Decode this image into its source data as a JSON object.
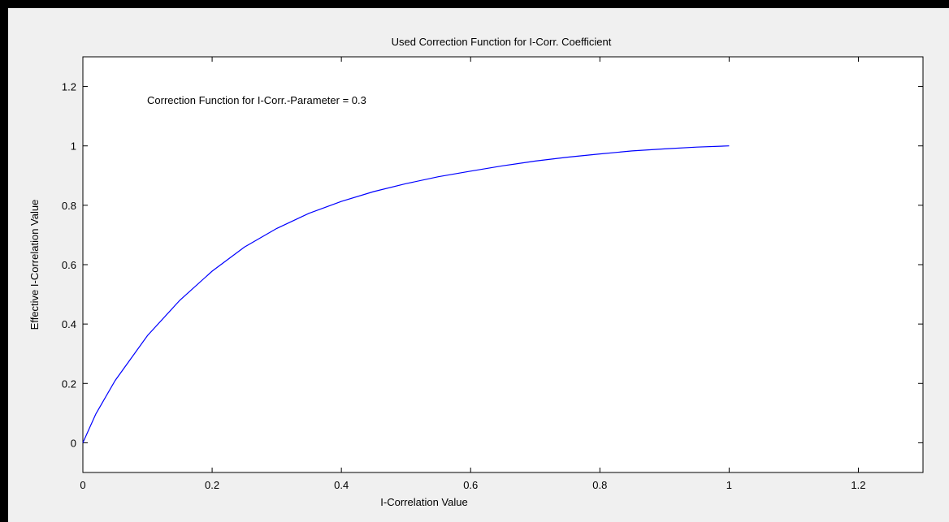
{
  "chart_data": {
    "type": "line",
    "title": "Used Correction Function for I-Corr. Coefficient",
    "xlabel": "I-Correlation Value",
    "ylabel": "Effective I-Correlation Value",
    "xlim": [
      0,
      1.3
    ],
    "ylim": [
      -0.1,
      1.3
    ],
    "xticks": [
      0,
      0.2,
      0.4,
      0.6,
      0.8,
      1,
      1.2
    ],
    "yticks": [
      0,
      0.2,
      0.4,
      0.6,
      0.8,
      1,
      1.2
    ],
    "xtick_labels": [
      "0",
      "0.2",
      "0.4",
      "0.6",
      "0.8",
      "1",
      "1.2"
    ],
    "ytick_labels": [
      "0",
      "0.2",
      "0.4",
      "0.6",
      "0.8",
      "1",
      "1.2"
    ],
    "grid": false,
    "annotation": "Correction Function for I-Corr.-Parameter = 0.3",
    "series": [
      {
        "color": "#0000ff",
        "x": [
          0,
          0.02,
          0.05,
          0.1,
          0.15,
          0.2,
          0.25,
          0.3,
          0.35,
          0.4,
          0.45,
          0.5,
          0.55,
          0.6,
          0.65,
          0.7,
          0.75,
          0.8,
          0.85,
          0.9,
          0.95,
          1.0
        ],
        "y": [
          0,
          0.097,
          0.21,
          0.361,
          0.48,
          0.578,
          0.659,
          0.722,
          0.773,
          0.813,
          0.846,
          0.873,
          0.896,
          0.915,
          0.933,
          0.949,
          0.962,
          0.973,
          0.983,
          0.99,
          0.996,
          1.0
        ]
      }
    ]
  }
}
